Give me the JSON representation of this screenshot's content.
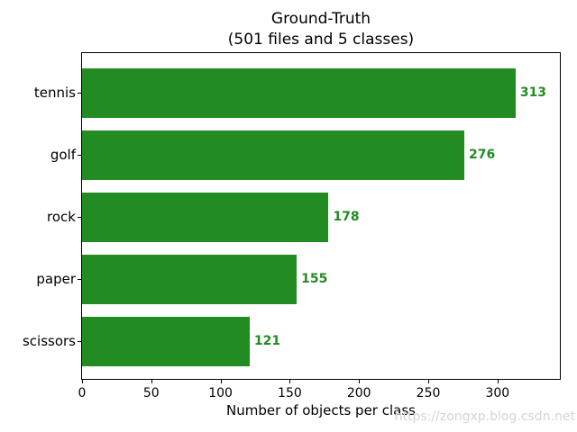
{
  "watermark": "https://zongxp.blog.csdn.net",
  "chart_data": {
    "type": "bar",
    "orientation": "horizontal",
    "title": "Ground-Truth",
    "subtitle": "(501 files and 5 classes)",
    "categories": [
      "tennis",
      "golf",
      "rock",
      "paper",
      "scissors"
    ],
    "values": [
      313,
      276,
      178,
      155,
      121
    ],
    "xlabel": "Number of objects per class",
    "x_ticks": [
      0,
      50,
      100,
      150,
      200,
      250,
      300
    ],
    "xlim": [
      0,
      345
    ],
    "bar_color": "#228B22",
    "value_label_color": "#228B22",
    "axis_color": "#000000",
    "grid": false,
    "legend": "none"
  }
}
